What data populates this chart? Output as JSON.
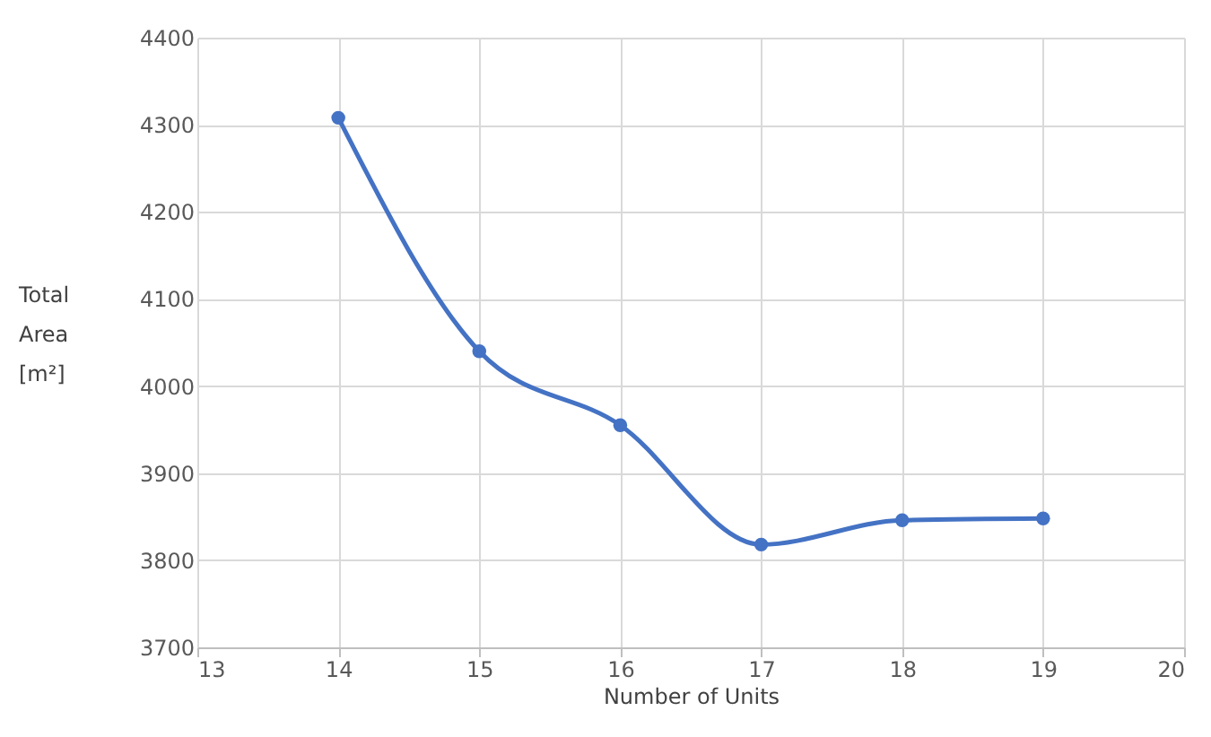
{
  "chart_data": {
    "type": "line",
    "xlabel": "Number of Units",
    "ylabel": "Total Area [m²]",
    "x": [
      14,
      15,
      16,
      17,
      18,
      19
    ],
    "series": [
      {
        "color": "#4472c4",
        "values": [
          4308,
          4040,
          3955,
          3818,
          3846,
          3848
        ]
      }
    ],
    "xlim": [
      13,
      20
    ],
    "xticks": [
      13,
      14,
      15,
      16,
      17,
      18,
      19,
      20
    ],
    "ylim": [
      3700,
      4400
    ],
    "yticks": [
      3700,
      3800,
      3900,
      4000,
      4100,
      4200,
      4300,
      4400
    ],
    "grid": true,
    "marker": "circle",
    "line_style": "solid"
  }
}
